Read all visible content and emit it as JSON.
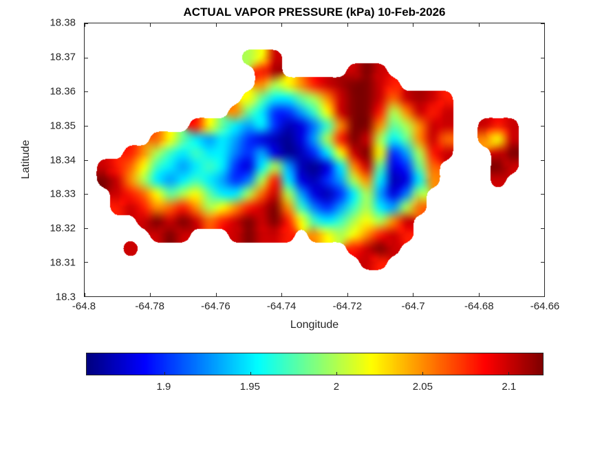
{
  "chart_data": {
    "type": "heatmap",
    "title": "ACTUAL VAPOR PRESSURE (kPa) 10-Feb-2026",
    "xlabel": "Longitude",
    "ylabel": "Latitude",
    "xlim": [
      -64.8,
      -64.66
    ],
    "ylim": [
      18.3,
      18.38
    ],
    "x_ticks": [
      {
        "value": -64.8,
        "label": "-64.8"
      },
      {
        "value": -64.78,
        "label": "-64.78"
      },
      {
        "value": -64.76,
        "label": "-64.76"
      },
      {
        "value": -64.74,
        "label": "-64.74"
      },
      {
        "value": -64.72,
        "label": "-64.72"
      },
      {
        "value": -64.7,
        "label": "-64.7"
      },
      {
        "value": -64.68,
        "label": "-64.68"
      },
      {
        "value": -64.66,
        "label": "-64.66"
      }
    ],
    "y_ticks": [
      {
        "value": 18.3,
        "label": "18.3"
      },
      {
        "value": 18.31,
        "label": "18.31"
      },
      {
        "value": 18.32,
        "label": "18.32"
      },
      {
        "value": 18.33,
        "label": "18.33"
      },
      {
        "value": 18.34,
        "label": "18.34"
      },
      {
        "value": 18.35,
        "label": "18.35"
      },
      {
        "value": 18.36,
        "label": "18.36"
      },
      {
        "value": 18.37,
        "label": "18.37"
      },
      {
        "value": 18.38,
        "label": "18.38"
      }
    ],
    "colormap": "jet",
    "clim": [
      1.855,
      2.12
    ],
    "colorbar_orientation": "horizontal",
    "colorbar_ticks": [
      {
        "value": 1.9,
        "label": "1.9"
      },
      {
        "value": 1.95,
        "label": "1.95"
      },
      {
        "value": 2,
        "label": "2"
      },
      {
        "value": 2.05,
        "label": "2.05"
      },
      {
        "value": 2.1,
        "label": "2.1"
      }
    ],
    "grid": {
      "lon_range": [
        -64.8,
        -64.66
      ],
      "lat_range": [
        18.3,
        18.38
      ],
      "ncols": 35,
      "nrows": 20,
      "values": [
        [
          null,
          null,
          null,
          null,
          null,
          null,
          null,
          null,
          null,
          null,
          null,
          null,
          null,
          null,
          null,
          null,
          null,
          null,
          null,
          null,
          null,
          null,
          null,
          null,
          null,
          null,
          null,
          null,
          null,
          null,
          null,
          null,
          null,
          null,
          null
        ],
        [
          null,
          null,
          null,
          null,
          null,
          null,
          null,
          null,
          null,
          null,
          null,
          null,
          null,
          null,
          null,
          null,
          null,
          null,
          null,
          null,
          null,
          null,
          null,
          null,
          null,
          null,
          null,
          null,
          null,
          null,
          null,
          null,
          null,
          null,
          null
        ],
        [
          null,
          null,
          null,
          null,
          null,
          null,
          null,
          null,
          null,
          null,
          null,
          null,
          2.0,
          2.02,
          2.1,
          null,
          null,
          null,
          null,
          null,
          null,
          null,
          null,
          null,
          null,
          null,
          null,
          null,
          null,
          null,
          null,
          null,
          null,
          null,
          null
        ],
        [
          null,
          null,
          null,
          null,
          null,
          null,
          null,
          null,
          null,
          null,
          null,
          null,
          null,
          2.08,
          2.11,
          null,
          null,
          null,
          null,
          null,
          2.1,
          2.12,
          2.1,
          null,
          null,
          null,
          null,
          null,
          null,
          null,
          null,
          null,
          null,
          null,
          null
        ],
        [
          null,
          null,
          null,
          null,
          null,
          null,
          null,
          null,
          null,
          null,
          null,
          null,
          null,
          2.05,
          2.0,
          2.02,
          2.05,
          2.08,
          2.1,
          2.11,
          2.12,
          2.12,
          2.1,
          2.08,
          null,
          null,
          null,
          null,
          null,
          null,
          null,
          null,
          null,
          null,
          null
        ],
        [
          null,
          null,
          null,
          null,
          null,
          null,
          null,
          null,
          null,
          null,
          null,
          null,
          2.02,
          1.98,
          1.95,
          1.95,
          1.98,
          2.0,
          2.05,
          2.1,
          2.12,
          2.12,
          2.1,
          2.06,
          2.1,
          2.11,
          2.1,
          2.08,
          null,
          null,
          null,
          null,
          null,
          null,
          null
        ],
        [
          null,
          null,
          null,
          null,
          null,
          null,
          null,
          null,
          null,
          null,
          null,
          2.05,
          1.98,
          1.95,
          1.9,
          1.9,
          1.93,
          1.97,
          2.02,
          2.1,
          2.12,
          2.12,
          2.08,
          2.0,
          2.05,
          2.1,
          2.08,
          2.1,
          null,
          null,
          null,
          null,
          null,
          null,
          null
        ],
        [
          null,
          null,
          null,
          null,
          null,
          null,
          null,
          null,
          2.08,
          2.02,
          1.98,
          1.95,
          1.93,
          1.95,
          1.9,
          1.87,
          1.88,
          1.92,
          1.97,
          2.05,
          2.12,
          2.12,
          2.05,
          1.98,
          2.0,
          2.05,
          2.1,
          2.1,
          null,
          null,
          2.1,
          2.08,
          2.1,
          null,
          null
        ],
        [
          null,
          null,
          null,
          null,
          null,
          2.06,
          2.02,
          1.98,
          1.95,
          1.93,
          1.95,
          1.93,
          1.9,
          1.88,
          1.87,
          1.86,
          1.88,
          1.93,
          2.0,
          2.08,
          2.12,
          2.1,
          2.0,
          1.95,
          1.98,
          2.05,
          2.1,
          2.06,
          null,
          null,
          2.05,
          2.02,
          2.1,
          null,
          null
        ],
        [
          null,
          null,
          null,
          2.08,
          2.05,
          2.0,
          1.97,
          1.95,
          1.97,
          1.95,
          1.95,
          1.92,
          1.9,
          1.93,
          1.88,
          1.86,
          1.87,
          1.9,
          1.95,
          2.02,
          2.1,
          2.12,
          2.02,
          1.9,
          1.93,
          2.0,
          2.08,
          2.1,
          null,
          null,
          null,
          2.1,
          2.12,
          null,
          null
        ],
        [
          null,
          2.1,
          2.08,
          2.06,
          2.02,
          1.97,
          1.95,
          1.93,
          1.95,
          1.97,
          1.95,
          1.9,
          1.88,
          1.95,
          2.0,
          1.93,
          1.87,
          1.86,
          1.88,
          1.95,
          2.05,
          2.1,
          1.98,
          1.88,
          1.9,
          1.98,
          2.06,
          null,
          null,
          null,
          null,
          2.12,
          2.1,
          null,
          null
        ],
        [
          null,
          2.12,
          2.1,
          2.05,
          2.0,
          1.95,
          1.93,
          1.95,
          1.97,
          1.95,
          1.93,
          1.9,
          1.92,
          2.0,
          2.08,
          1.95,
          1.88,
          1.87,
          1.9,
          1.93,
          2.0,
          2.05,
          1.95,
          1.87,
          1.88,
          1.95,
          2.05,
          null,
          null,
          null,
          null,
          2.1,
          null,
          null,
          null
        ],
        [
          null,
          null,
          2.1,
          2.08,
          2.06,
          2.02,
          1.98,
          2.0,
          2.02,
          1.98,
          1.95,
          1.95,
          2.0,
          2.06,
          2.1,
          2.0,
          1.93,
          1.88,
          1.87,
          1.9,
          1.95,
          2.0,
          1.93,
          1.88,
          1.92,
          2.0,
          null,
          null,
          null,
          null,
          null,
          null,
          null,
          null,
          null
        ],
        [
          null,
          null,
          2.08,
          2.1,
          2.08,
          2.05,
          2.06,
          2.08,
          2.05,
          2.0,
          2.02,
          2.05,
          2.08,
          2.1,
          2.12,
          2.05,
          1.97,
          1.92,
          1.9,
          1.93,
          1.97,
          2.0,
          1.95,
          1.93,
          2.0,
          2.06,
          null,
          null,
          null,
          null,
          null,
          null,
          null,
          null,
          null
        ],
        [
          null,
          null,
          null,
          null,
          2.1,
          2.12,
          2.1,
          2.12,
          2.1,
          2.06,
          2.08,
          2.1,
          2.12,
          2.1,
          2.12,
          2.08,
          2.02,
          1.97,
          1.95,
          1.97,
          2.0,
          2.02,
          2.0,
          2.05,
          2.1,
          null,
          null,
          null,
          null,
          null,
          null,
          null,
          null,
          null,
          null
        ],
        [
          null,
          null,
          null,
          null,
          null,
          2.1,
          2.12,
          2.1,
          null,
          null,
          null,
          2.1,
          2.12,
          2.1,
          2.1,
          2.08,
          null,
          2.05,
          2.02,
          2.0,
          2.02,
          2.05,
          2.08,
          2.1,
          2.08,
          null,
          null,
          null,
          null,
          null,
          null,
          null,
          null,
          null,
          null
        ],
        [
          null,
          null,
          null,
          2.1,
          null,
          null,
          null,
          null,
          null,
          null,
          null,
          null,
          null,
          null,
          null,
          null,
          null,
          null,
          null,
          null,
          2.08,
          2.1,
          2.12,
          2.1,
          null,
          null,
          null,
          null,
          null,
          null,
          null,
          null,
          null,
          null,
          null
        ],
        [
          null,
          null,
          null,
          null,
          null,
          null,
          null,
          null,
          null,
          null,
          null,
          null,
          null,
          null,
          null,
          null,
          null,
          null,
          null,
          null,
          null,
          2.1,
          2.08,
          null,
          null,
          null,
          null,
          null,
          null,
          null,
          null,
          null,
          null,
          null,
          null
        ],
        [
          null,
          null,
          null,
          null,
          null,
          null,
          null,
          null,
          null,
          null,
          null,
          null,
          null,
          null,
          null,
          null,
          null,
          null,
          null,
          null,
          null,
          null,
          null,
          null,
          null,
          null,
          null,
          null,
          null,
          null,
          null,
          null,
          null,
          null,
          null
        ],
        [
          null,
          null,
          null,
          null,
          null,
          null,
          null,
          null,
          null,
          null,
          null,
          null,
          null,
          null,
          null,
          null,
          null,
          null,
          null,
          null,
          null,
          null,
          null,
          null,
          null,
          null,
          null,
          null,
          null,
          null,
          null,
          null,
          null,
          null,
          null
        ]
      ]
    }
  }
}
